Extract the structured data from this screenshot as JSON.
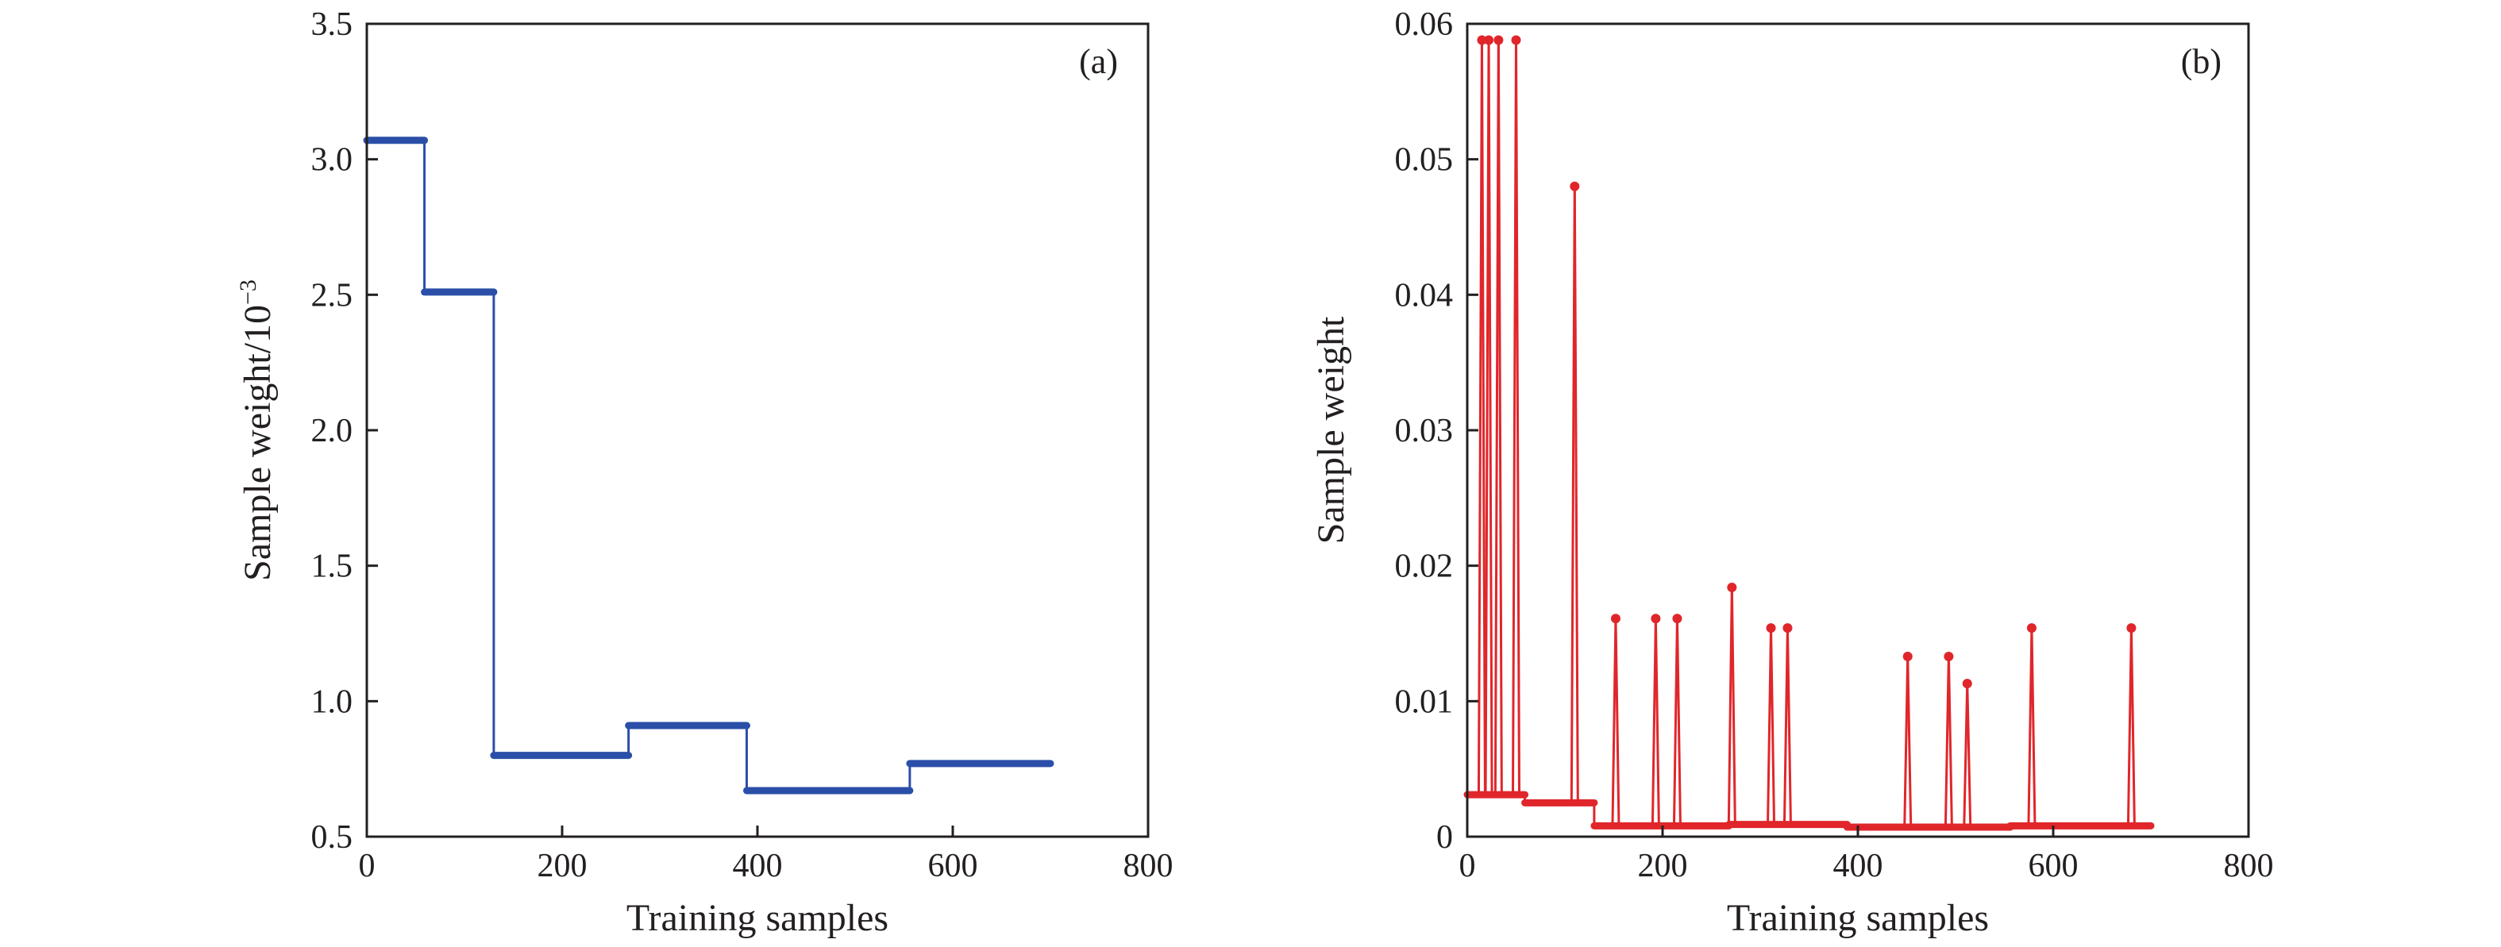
{
  "chart_data": [
    {
      "type": "line",
      "panel_label": "(a)",
      "xlabel": "Training samples",
      "ylabel": "Sample weight/10",
      "ylabel_exponent": "−3",
      "xlim": [
        0,
        800
      ],
      "ylim": [
        0.5,
        3.5
      ],
      "xticks": [
        0,
        200,
        400,
        600,
        800
      ],
      "xtick_labels": [
        "0",
        "200",
        "400",
        "600",
        "800"
      ],
      "yticks": [
        0.5,
        1.0,
        1.5,
        2.0,
        2.5,
        3.0,
        3.5
      ],
      "ytick_labels": [
        "0.5",
        "1.0",
        "1.5",
        "2.0",
        "2.5",
        "3.0",
        "3.5"
      ],
      "color": "#2b4fa8",
      "series": [
        {
          "segments": [
            {
              "x_start": 0,
              "x_end": 59,
              "y": 3.07
            },
            {
              "x_start": 59,
              "x_end": 130,
              "y": 2.51
            },
            {
              "x_start": 130,
              "x_end": 268,
              "y": 0.8
            },
            {
              "x_start": 268,
              "x_end": 389,
              "y": 0.91
            },
            {
              "x_start": 389,
              "x_end": 556,
              "y": 0.67
            },
            {
              "x_start": 556,
              "x_end": 700,
              "y": 0.77
            }
          ]
        }
      ]
    },
    {
      "type": "line",
      "panel_label": "(b)",
      "xlabel": "Training samples",
      "ylabel": "Sample weight",
      "xlim": [
        0,
        800
      ],
      "ylim": [
        0,
        0.06
      ],
      "xticks": [
        0,
        200,
        400,
        600,
        800
      ],
      "xtick_labels": [
        "0",
        "200",
        "400",
        "600",
        "800"
      ],
      "yticks": [
        0,
        0.01,
        0.02,
        0.03,
        0.04,
        0.05,
        0.06
      ],
      "ytick_labels": [
        "0",
        "0.01",
        "0.02",
        "0.03",
        "0.04",
        "0.05",
        "0.06"
      ],
      "color": "#e0262b",
      "series": [
        {
          "baseline_segments": [
            {
              "x_start": 0,
              "x_end": 59,
              "y": 0.0031
            },
            {
              "x_start": 59,
              "x_end": 130,
              "y": 0.0025
            },
            {
              "x_start": 130,
              "x_end": 268,
              "y": 0.0008
            },
            {
              "x_start": 268,
              "x_end": 389,
              "y": 0.0009
            },
            {
              "x_start": 389,
              "x_end": 556,
              "y": 0.0007
            },
            {
              "x_start": 556,
              "x_end": 700,
              "y": 0.0008
            }
          ],
          "spikes": [
            {
              "x": 15,
              "y": 0.0588
            },
            {
              "x": 22,
              "y": 0.0588
            },
            {
              "x": 32,
              "y": 0.0588
            },
            {
              "x": 50,
              "y": 0.0588
            },
            {
              "x": 110,
              "y": 0.048
            },
            {
              "x": 152,
              "y": 0.0161
            },
            {
              "x": 193,
              "y": 0.0161
            },
            {
              "x": 215,
              "y": 0.0161
            },
            {
              "x": 271,
              "y": 0.0184
            },
            {
              "x": 311,
              "y": 0.0154
            },
            {
              "x": 328,
              "y": 0.0154
            },
            {
              "x": 451,
              "y": 0.0133
            },
            {
              "x": 493,
              "y": 0.0133
            },
            {
              "x": 512,
              "y": 0.0113
            },
            {
              "x": 578,
              "y": 0.0154
            },
            {
              "x": 680,
              "y": 0.0154
            }
          ]
        }
      ]
    }
  ]
}
